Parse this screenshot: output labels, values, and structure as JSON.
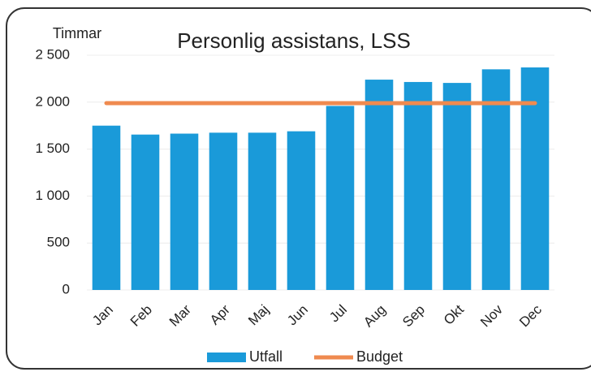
{
  "chart_data": {
    "type": "bar",
    "title": "Personlig assistans, LSS",
    "ylabel": "Timmar",
    "categories": [
      "Jan",
      "Feb",
      "Mar",
      "Apr",
      "Maj",
      "Jun",
      "Jul",
      "Aug",
      "Sep",
      "Okt",
      "Nov",
      "Dec"
    ],
    "series": [
      {
        "name": "Utfall",
        "type": "bar",
        "color": "#1a9ad9",
        "values": [
          1750,
          1655,
          1665,
          1675,
          1675,
          1690,
          1960,
          2240,
          2215,
          2205,
          2350,
          2370
        ]
      },
      {
        "name": "Budget",
        "type": "line",
        "color": "#ef8a4f",
        "values": [
          1990,
          1990,
          1990,
          1990,
          1990,
          1990,
          1990,
          1990,
          1990,
          1990,
          1990,
          1990
        ]
      }
    ],
    "ylim": [
      0,
      2500
    ],
    "yticks": [
      0,
      500,
      {
        "value": 1000,
        "label": "1 000"
      },
      {
        "value": 1500,
        "label": "1 500"
      },
      {
        "value": 2000,
        "label": "2 000"
      },
      {
        "value": 2500,
        "label": "2 500"
      }
    ],
    "grid": true,
    "legend": "bottom"
  }
}
